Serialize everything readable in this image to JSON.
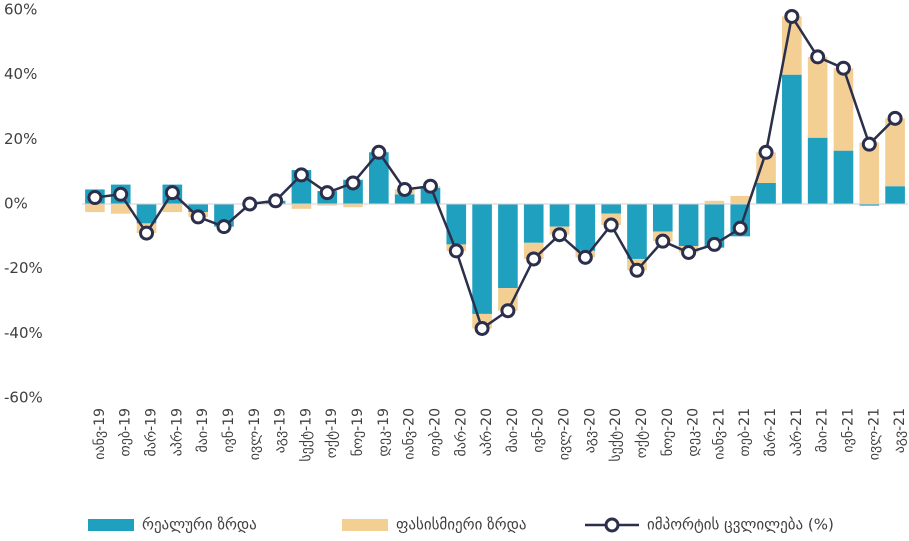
{
  "chart_data": {
    "type": "stacked-bar-line",
    "categories": [
      "იანვ-19",
      "თებ-19",
      "მარ-19",
      "აპრ-19",
      "მაი-19",
      "ივნ-19",
      "ივლ-19",
      "აგვ-19",
      "სექტ-19",
      "ოქტ-19",
      "ნოე-19",
      "დეკ-19",
      "იანვ-20",
      "თებ-20",
      "მარ-20",
      "აპრ-20",
      "მაი-20",
      "ივნ-20",
      "ივლ-20",
      "აგვ-20",
      "სექტ-20",
      "ოქტ-20",
      "ნოე-20",
      "დეკ-20",
      "იანვ-21",
      "თებ-21",
      "მარ-21",
      "აპრ-21",
      "მაი-21",
      "ივნ-21",
      "ივლ-21",
      "აგვ-21"
    ],
    "series": [
      {
        "name": "რეალური ზრდა",
        "kind": "bar",
        "color": "#1fa0bf",
        "values": [
          4.5,
          6,
          -6,
          6,
          -2.5,
          -7,
          0,
          1,
          10.5,
          4,
          7.5,
          16,
          3,
          5,
          -12.5,
          -34,
          -26,
          -12,
          -7,
          -14.5,
          -3,
          -17,
          -8.5,
          -13,
          -13.5,
          -10,
          6.5,
          40,
          20.5,
          16.5,
          -0.5,
          5.5
        ]
      },
      {
        "name": "ფასისმიერი ზრდა",
        "kind": "bar",
        "color": "#f4cf94",
        "values": [
          -2.5,
          -3,
          -3,
          -2.5,
          -1.5,
          0,
          0,
          0,
          -1.5,
          -0.5,
          -1,
          0,
          1.5,
          0.5,
          -2,
          -4.5,
          -7,
          -5,
          -2.5,
          -2,
          -3.5,
          -3.5,
          -3,
          -2,
          1,
          2.5,
          9.5,
          18,
          25,
          25.5,
          19,
          21
        ]
      },
      {
        "name": "იმპორტის ცვლილება (%)",
        "kind": "line",
        "color": "#2b2f4c",
        "values": [
          2,
          3,
          -9,
          3.5,
          -4,
          -7,
          0,
          1,
          9,
          3.5,
          6.5,
          16,
          4.5,
          5.5,
          -14.5,
          -38.5,
          -33,
          -17,
          -9.5,
          -16.5,
          -6.5,
          -20.5,
          -11.5,
          -15,
          -12.5,
          -7.5,
          16,
          58,
          45.5,
          42,
          18.5,
          26.5
        ]
      }
    ],
    "ylim": [
      -60,
      60
    ],
    "yticks": [
      {
        "value": -60,
        "label": "-60%"
      },
      {
        "value": -40,
        "label": "-40%"
      },
      {
        "value": -20,
        "label": "-20%"
      },
      {
        "value": 0,
        "label": "0%"
      },
      {
        "value": 20,
        "label": "20%"
      },
      {
        "value": 40,
        "label": "40%"
      },
      {
        "value": 60,
        "label": "60%"
      }
    ],
    "legend": "bottom"
  }
}
